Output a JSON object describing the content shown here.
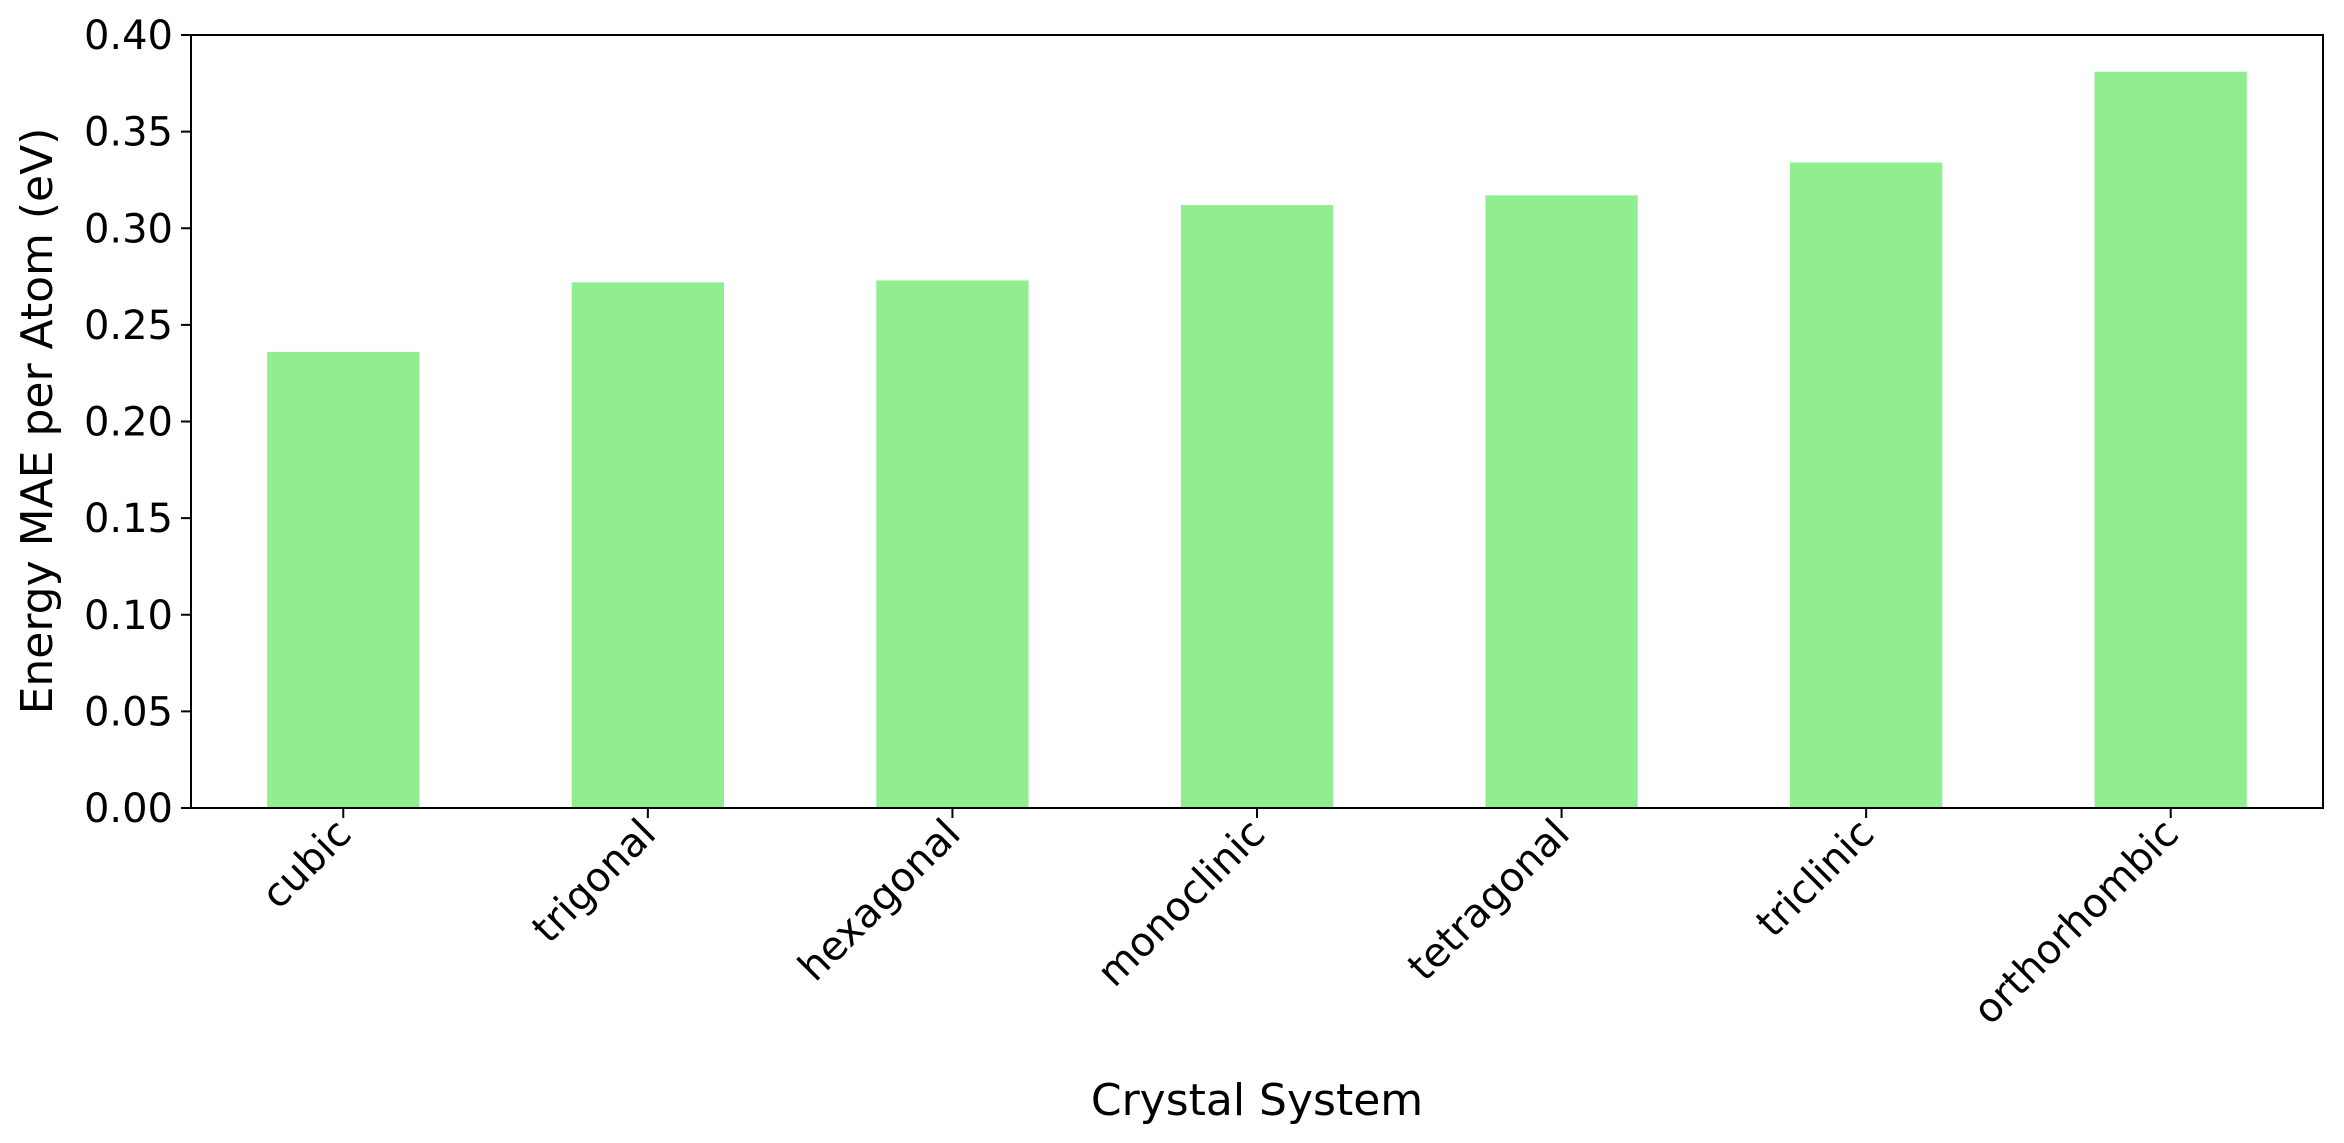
{
  "chart_data": {
    "type": "bar",
    "title": "",
    "xlabel": "Crystal System",
    "ylabel": "Energy MAE per Atom (eV)",
    "categories": [
      "cubic",
      "trigonal",
      "hexagonal",
      "monoclinic",
      "tetragonal",
      "triclinic",
      "orthorhombic"
    ],
    "values": [
      0.236,
      0.272,
      0.273,
      0.312,
      0.317,
      0.334,
      0.381
    ],
    "ylim": [
      0,
      0.4
    ],
    "yticks": [
      "0.00",
      "0.05",
      "0.10",
      "0.15",
      "0.20",
      "0.25",
      "0.30",
      "0.35",
      "0.40"
    ],
    "grid": false,
    "legend": "none",
    "bar_color": "#90ee90"
  }
}
